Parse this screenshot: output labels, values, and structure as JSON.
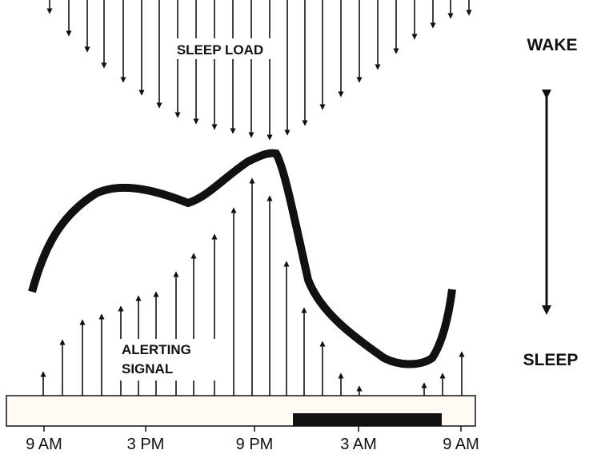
{
  "sleep_load": {
    "label": "SLEEP LOAD"
  },
  "alerting_signal": {
    "label": [
      "ALERTING",
      "SIGNAL"
    ]
  },
  "state_scale": {
    "top": "WAKE",
    "bottom": "SLEEP"
  },
  "time_axis": [
    "9 AM",
    "3 PM",
    "9 PM",
    "3 AM",
    "9 AM"
  ]
}
